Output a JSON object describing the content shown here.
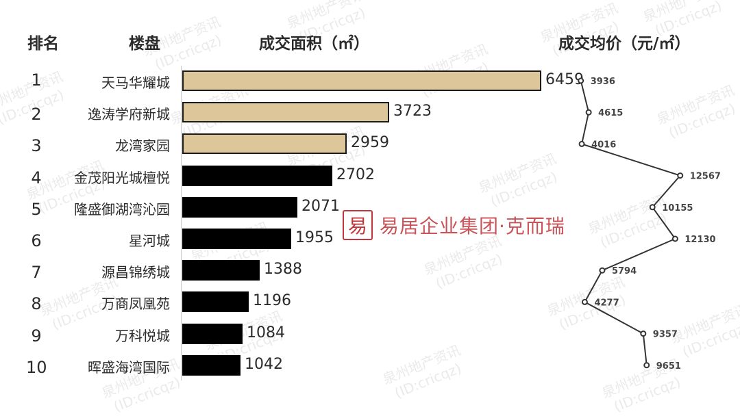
{
  "watermark": {
    "line1": "泉州地产资讯",
    "line2": "(ID:cricqz)"
  },
  "headers": {
    "rank": "排名",
    "name": "楼盘",
    "area": "成交面积（㎡）",
    "price": "成交均价（元/㎡）"
  },
  "logo": {
    "seal": "易",
    "text": "易居企业集团·克而瑞"
  },
  "colors": {
    "top3_bar": "#dcc69a",
    "other_bar": "#000000",
    "line": "#333333",
    "logo": "#c0363b"
  },
  "chart_data": {
    "type": "bar",
    "orientation": "horizontal",
    "categories": [
      "天马华耀城",
      "逸涛学府新城",
      "龙湾家园",
      "金茂阳光城檀悦",
      "隆盛御湖湾沁园",
      "星河城",
      "源昌锦绣城",
      "万商凤凰苑",
      "万科悦城",
      "晖盛海湾国际"
    ],
    "ranks": [
      "1",
      "2",
      "3",
      "4",
      "5",
      "6",
      "7",
      "8",
      "9",
      "10"
    ],
    "series": [
      {
        "name": "成交面积（㎡）",
        "type": "bar",
        "values": [
          6459,
          3723,
          2959,
          2702,
          2071,
          1955,
          1388,
          1196,
          1084,
          1042
        ]
      },
      {
        "name": "成交均价（元/㎡）",
        "type": "line",
        "values": [
          3936,
          4615,
          4016,
          12567,
          10155,
          12130,
          5794,
          4277,
          9357,
          9651
        ]
      }
    ],
    "highlighted_top": 3
  }
}
